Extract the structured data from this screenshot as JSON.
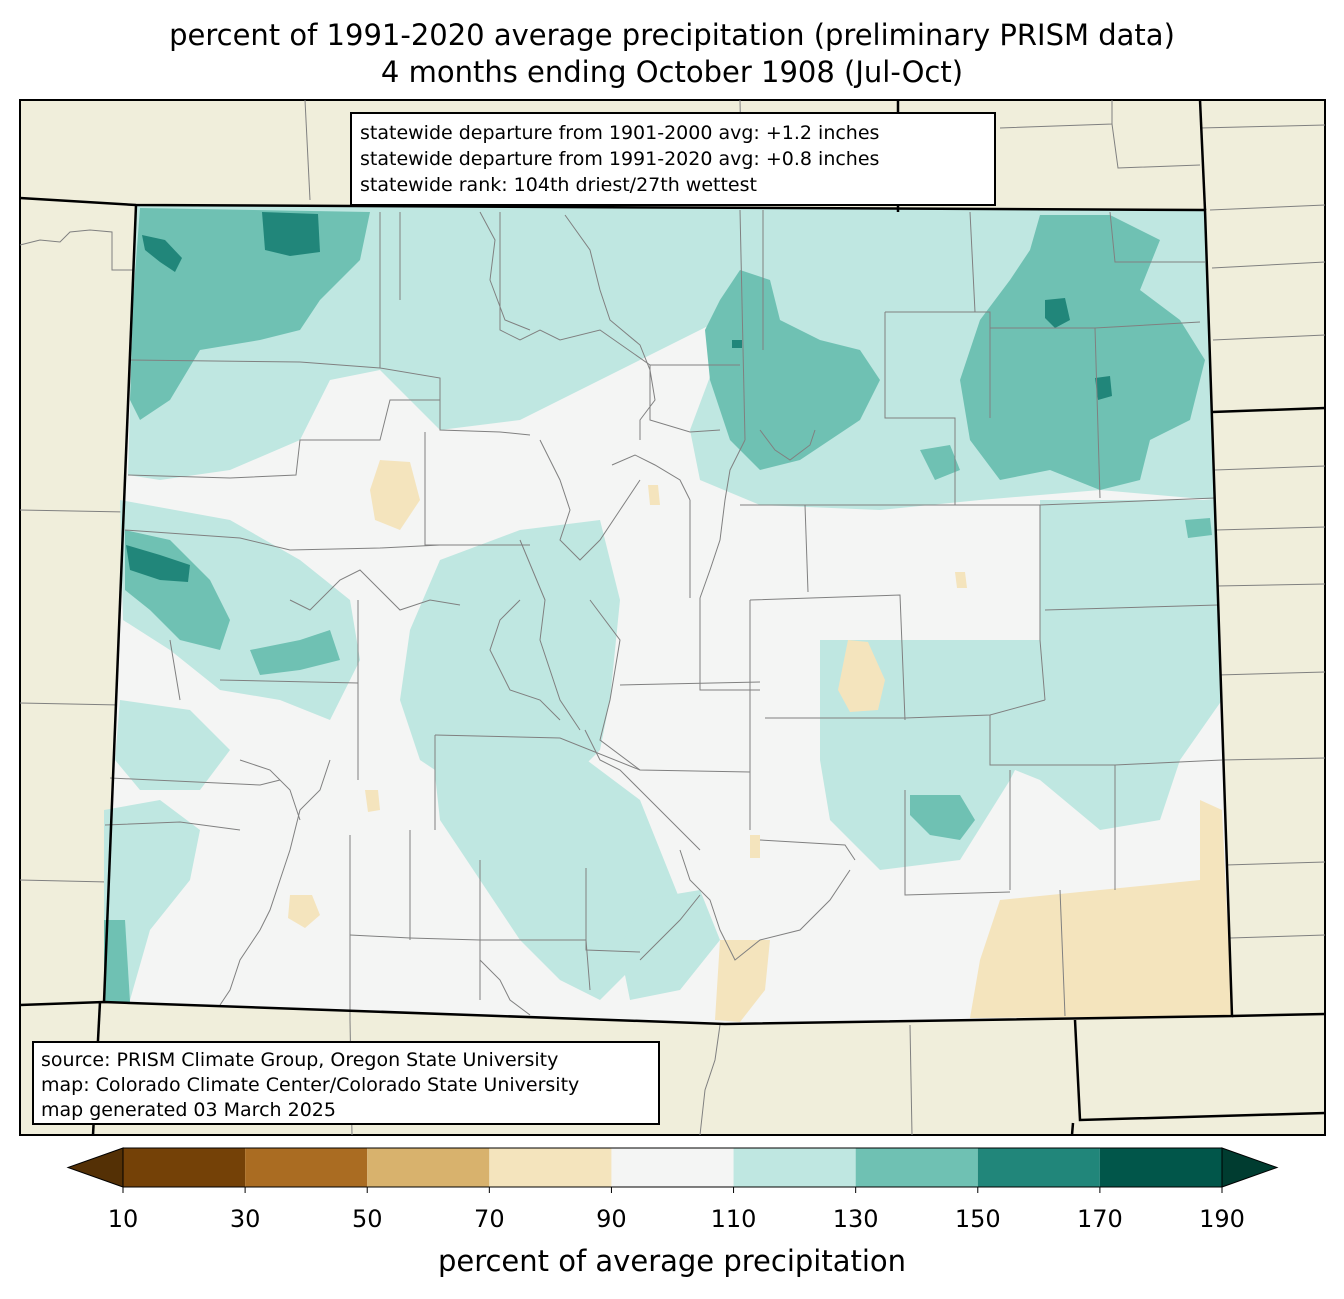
{
  "title": {
    "line1": "percent of 1991-2020 average precipitation (preliminary PRISM data)",
    "line2": "4 months ending October 1908 (Jul-Oct)"
  },
  "stats": {
    "line1": "statewide departure from 1901-2000 avg: +1.2 inches",
    "line2": "statewide departure from 1991-2020 avg: +0.8 inches",
    "line3": "statewide rank: 104th driest/27th wettest"
  },
  "source": {
    "line1": "source: PRISM Climate Group, Oregon State University",
    "line2": "map: Colorado Climate Center/Colorado State University",
    "line3": "map generated 03 March 2025"
  },
  "colorbar": {
    "label": "percent of average precipitation",
    "ticks": [
      "10",
      "30",
      "50",
      "70",
      "90",
      "110",
      "130",
      "150",
      "170",
      "190"
    ],
    "under_color": "#543005",
    "over_color": "#003c30",
    "bins": [
      {
        "from": 10,
        "to": 30,
        "color": "#744107"
      },
      {
        "from": 30,
        "to": 50,
        "color": "#aa6c22"
      },
      {
        "from": 50,
        "to": 70,
        "color": "#d8b26d"
      },
      {
        "from": 70,
        "to": 90,
        "color": "#f4e4bd"
      },
      {
        "from": 90,
        "to": 110,
        "color": "#f4f5f4"
      },
      {
        "from": 110,
        "to": 130,
        "color": "#bfe7e1"
      },
      {
        "from": 130,
        "to": 150,
        "color": "#6fc1b3"
      },
      {
        "from": 150,
        "to": 170,
        "color": "#21867a"
      },
      {
        "from": 170,
        "to": 190,
        "color": "#01564a"
      }
    ]
  },
  "colors": {
    "background_land": "#f0eedb",
    "county_lines": "#808080",
    "state_lines": "#000000"
  }
}
